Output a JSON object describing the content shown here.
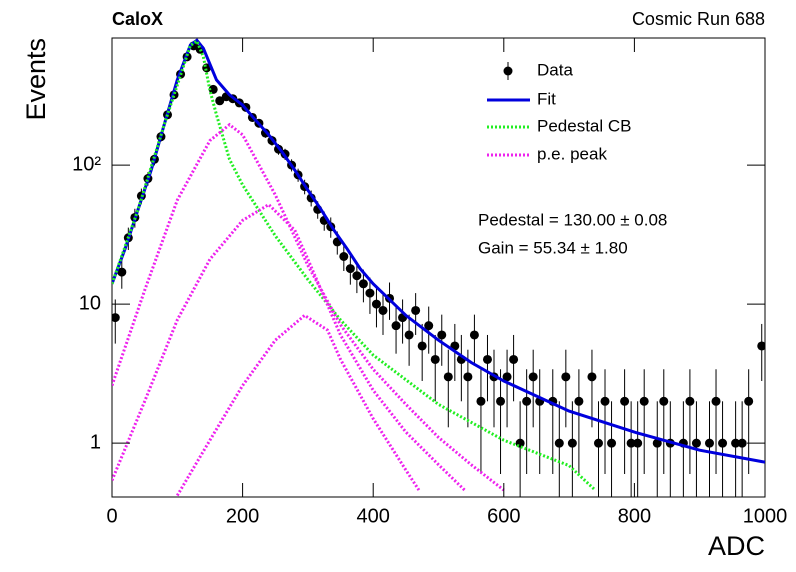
{
  "chart_data": {
    "type": "line",
    "title": "CaloX",
    "subtitle": "Cosmic Run 688",
    "x_label": "ADC",
    "y_label": "Events",
    "log_y": true,
    "xlim": [
      0,
      1000
    ],
    "ylim": [
      0.41,
      820
    ],
    "xticks": [
      0,
      200,
      400,
      600,
      800,
      1000
    ],
    "yticks": [
      1,
      10,
      {
        "value": 100,
        "label": "10²"
      }
    ],
    "annotations": [
      "Pedestal = 130.00 ± 0.08",
      "Gain = 55.34 ± 1.80"
    ],
    "series": [
      {
        "name": "Data",
        "type": "errorbar",
        "color": "#000000",
        "x": [
          5,
          15,
          25,
          35,
          45,
          55,
          65,
          75,
          85,
          95,
          105,
          115,
          125,
          135,
          145,
          155,
          165,
          175,
          185,
          195,
          205,
          215,
          225,
          235,
          245,
          255,
          265,
          275,
          285,
          295,
          305,
          315,
          325,
          335,
          345,
          355,
          365,
          375,
          385,
          395,
          405,
          415,
          425,
          435,
          445,
          455,
          465,
          475,
          485,
          495,
          505,
          515,
          525,
          535,
          545,
          555,
          565,
          575,
          585,
          595,
          605,
          615,
          625,
          635,
          645,
          655,
          665,
          675,
          685,
          695,
          705,
          715,
          725,
          735,
          745,
          755,
          765,
          775,
          785,
          795,
          805,
          815,
          825,
          835,
          845,
          855,
          865,
          875,
          885,
          895,
          905,
          915,
          925,
          935,
          945,
          955,
          965,
          975,
          985,
          995
        ],
        "values": [
          8,
          17,
          30,
          42,
          60,
          80,
          110,
          160,
          230,
          320,
          450,
          600,
          720,
          680,
          500,
          350,
          290,
          310,
          300,
          280,
          260,
          220,
          200,
          170,
          150,
          130,
          120,
          100,
          85,
          70,
          58,
          48,
          40,
          36,
          28,
          22,
          18,
          16,
          14,
          12,
          10,
          9,
          11,
          7,
          8,
          6,
          9,
          5,
          7,
          4,
          6,
          3,
          5,
          4,
          3,
          6,
          2,
          4,
          3,
          2,
          3,
          4,
          1,
          2,
          3,
          2,
          null,
          2,
          1,
          3,
          1,
          2,
          null,
          3,
          1,
          2,
          1,
          null,
          2,
          1,
          1,
          2,
          null,
          1,
          2,
          1,
          null,
          1,
          2,
          1,
          null,
          1,
          2,
          1,
          null,
          1,
          1,
          2,
          null,
          5
        ],
        "errors": [
          2.8,
          4.1,
          5.5,
          6.5,
          7.7,
          8.9,
          10.5,
          12.6,
          15.2,
          17.9,
          21.2,
          24.5,
          26.8,
          26.1,
          22.4,
          18.7,
          17.0,
          17.6,
          17.3,
          16.7,
          16.1,
          14.8,
          14.1,
          13.0,
          12.2,
          11.4,
          11.0,
          10.0,
          9.2,
          8.4,
          7.6,
          6.9,
          6.3,
          6.0,
          5.3,
          4.7,
          4.2,
          4.0,
          3.7,
          3.5,
          3.2,
          3.0,
          3.3,
          2.6,
          2.8,
          2.4,
          3.0,
          2.2,
          2.6,
          2.0,
          2.4,
          1.7,
          2.2,
          2.0,
          1.7,
          2.4,
          1.4,
          2.0,
          1.7,
          1.4,
          1.7,
          2.0,
          1.0,
          1.4,
          1.7,
          1.4,
          null,
          1.4,
          1.0,
          1.7,
          1.0,
          1.4,
          null,
          1.7,
          1.0,
          1.4,
          1.0,
          null,
          1.4,
          1.0,
          1.0,
          1.4,
          null,
          1.0,
          1.4,
          1.0,
          null,
          1.0,
          1.4,
          1.0,
          null,
          1.0,
          1.4,
          1.0,
          null,
          1.0,
          1.0,
          1.4,
          null,
          2.2
        ]
      },
      {
        "name": "Fit",
        "type": "line",
        "color": "#0000dd",
        "dash": "solid",
        "x": [
          0,
          20,
          40,
          60,
          80,
          100,
          120,
          130,
          140,
          160,
          180,
          200,
          220,
          240,
          260,
          280,
          300,
          320,
          340,
          360,
          380,
          400,
          450,
          500,
          550,
          600,
          700,
          800,
          900,
          1000
        ],
        "values": [
          14,
          25,
          48,
          92,
          195,
          410,
          730,
          790,
          690,
          410,
          320,
          270,
          210,
          165,
          125,
          92,
          66,
          48,
          34,
          25,
          18,
          14,
          8.3,
          5.5,
          3.8,
          2.8,
          1.7,
          1.2,
          0.89,
          0.73
        ]
      },
      {
        "name": "Pedestal CB",
        "type": "line",
        "color": "#22ee22",
        "dash": "dotted",
        "x": [
          0,
          40,
          80,
          120,
          130,
          140,
          150,
          160,
          180,
          200,
          250,
          300,
          350,
          400,
          500,
          600,
          700,
          740
        ],
        "values": [
          14,
          48,
          195,
          725,
          780,
          600,
          345,
          230,
          110,
          72,
          31,
          15,
          7.7,
          4.3,
          1.9,
          1.05,
          0.69,
          0.46
        ]
      },
      {
        "name": "p.e. peak",
        "type": "line",
        "color": "#ee22ee",
        "dash": "dotted",
        "x": [
          0,
          50,
          100,
          150,
          180,
          200,
          250,
          300,
          350,
          400,
          450,
          500,
          550,
          600,
          null,
          0,
          50,
          100,
          150,
          200,
          240,
          280,
          300,
          350,
          400,
          450,
          500,
          540,
          null,
          100,
          150,
          200,
          250,
          295,
          330,
          350,
          400,
          450,
          470
        ],
        "values": [
          2.6,
          12.6,
          56,
          150,
          195,
          165,
          61,
          19,
          7.1,
          3.4,
          1.9,
          1.1,
          0.7,
          0.46,
          null,
          0.54,
          2.0,
          7.7,
          21,
          40,
          52,
          34,
          21,
          6.0,
          2.4,
          1.2,
          0.7,
          0.46,
          null,
          0.42,
          1.05,
          2.6,
          5.5,
          8.3,
          6.5,
          4.0,
          1.5,
          0.64,
          0.46
        ]
      }
    ]
  }
}
